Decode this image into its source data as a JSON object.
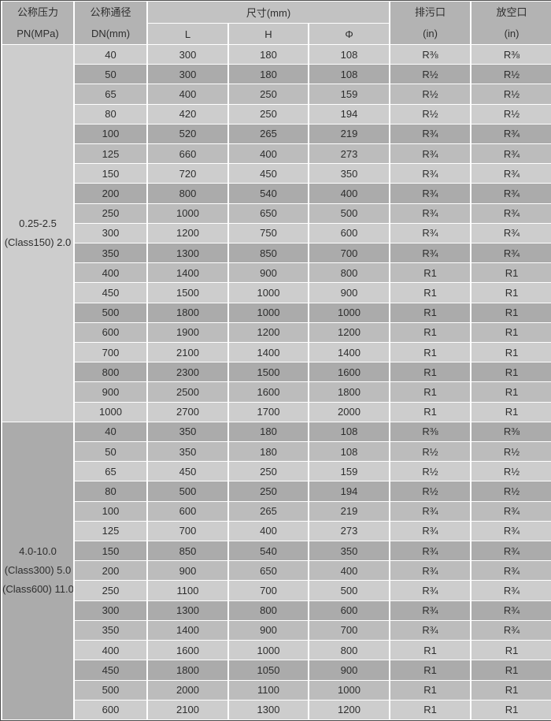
{
  "header": {
    "pressure": {
      "line1": "公称压力",
      "line2": "PN(MPa)"
    },
    "diameter": {
      "line1": "公称通径",
      "line2": "DN(mm)"
    },
    "size": "尺寸(mm)",
    "size_sub": {
      "l": "L",
      "h": "H",
      "phi": "Φ"
    },
    "drain": {
      "line1": "排污口",
      "line2": "(in)"
    },
    "vent": {
      "line1": "放空口",
      "line2": "(in)"
    }
  },
  "groups": [
    {
      "label_lines": [
        "0.25-2.5",
        "(Class150) 2.0"
      ],
      "shade": "light",
      "rows": [
        {
          "dn": "40",
          "L": "300",
          "H": "180",
          "phi": "108",
          "drain": "R⅜",
          "vent": "R⅜"
        },
        {
          "dn": "50",
          "L": "300",
          "H": "180",
          "phi": "108",
          "drain": "R½",
          "vent": "R½"
        },
        {
          "dn": "65",
          "L": "400",
          "H": "250",
          "phi": "159",
          "drain": "R½",
          "vent": "R½"
        },
        {
          "dn": "80",
          "L": "420",
          "H": "250",
          "phi": "194",
          "drain": "R½",
          "vent": "R½"
        },
        {
          "dn": "100",
          "L": "520",
          "H": "265",
          "phi": "219",
          "drain": "R¾",
          "vent": "R¾"
        },
        {
          "dn": "125",
          "L": "660",
          "H": "400",
          "phi": "273",
          "drain": "R¾",
          "vent": "R¾"
        },
        {
          "dn": "150",
          "L": "720",
          "H": "450",
          "phi": "350",
          "drain": "R¾",
          "vent": "R¾"
        },
        {
          "dn": "200",
          "L": "800",
          "H": "540",
          "phi": "400",
          "drain": "R¾",
          "vent": "R¾"
        },
        {
          "dn": "250",
          "L": "1000",
          "H": "650",
          "phi": "500",
          "drain": "R¾",
          "vent": "R¾"
        },
        {
          "dn": "300",
          "L": "1200",
          "H": "750",
          "phi": "600",
          "drain": "R¾",
          "vent": "R¾"
        },
        {
          "dn": "350",
          "L": "1300",
          "H": "850",
          "phi": "700",
          "drain": "R¾",
          "vent": "R¾"
        },
        {
          "dn": "400",
          "L": "1400",
          "H": "900",
          "phi": "800",
          "drain": "R1",
          "vent": "R1"
        },
        {
          "dn": "450",
          "L": "1500",
          "H": "1000",
          "phi": "900",
          "drain": "R1",
          "vent": "R1"
        },
        {
          "dn": "500",
          "L": "1800",
          "H": "1000",
          "phi": "1000",
          "drain": "R1",
          "vent": "R1"
        },
        {
          "dn": "600",
          "L": "1900",
          "H": "1200",
          "phi": "1200",
          "drain": "R1",
          "vent": "R1"
        },
        {
          "dn": "700",
          "L": "2100",
          "H": "1400",
          "phi": "1400",
          "drain": "R1",
          "vent": "R1"
        },
        {
          "dn": "800",
          "L": "2300",
          "H": "1500",
          "phi": "1600",
          "drain": "R1",
          "vent": "R1"
        },
        {
          "dn": "900",
          "L": "2500",
          "H": "1600",
          "phi": "1800",
          "drain": "R1",
          "vent": "R1"
        },
        {
          "dn": "1000",
          "L": "2700",
          "H": "1700",
          "phi": "2000",
          "drain": "R1",
          "vent": "R1"
        }
      ]
    },
    {
      "label_lines": [
        "4.0-10.0",
        "(Class300) 5.0",
        "(Class600) 11.0"
      ],
      "shade": "dark",
      "rows": [
        {
          "dn": "40",
          "L": "350",
          "H": "180",
          "phi": "108",
          "drain": "R⅜",
          "vent": "R⅜"
        },
        {
          "dn": "50",
          "L": "350",
          "H": "180",
          "phi": "108",
          "drain": "R½",
          "vent": "R½"
        },
        {
          "dn": "65",
          "L": "450",
          "H": "250",
          "phi": "159",
          "drain": "R½",
          "vent": "R½"
        },
        {
          "dn": "80",
          "L": "500",
          "H": "250",
          "phi": "194",
          "drain": "R½",
          "vent": "R½"
        },
        {
          "dn": "100",
          "L": "600",
          "H": "265",
          "phi": "219",
          "drain": "R¾",
          "vent": "R¾"
        },
        {
          "dn": "125",
          "L": "700",
          "H": "400",
          "phi": "273",
          "drain": "R¾",
          "vent": "R¾"
        },
        {
          "dn": "150",
          "L": "850",
          "H": "540",
          "phi": "350",
          "drain": "R¾",
          "vent": "R¾"
        },
        {
          "dn": "200",
          "L": "900",
          "H": "650",
          "phi": "400",
          "drain": "R¾",
          "vent": "R¾"
        },
        {
          "dn": "250",
          "L": "1100",
          "H": "700",
          "phi": "500",
          "drain": "R¾",
          "vent": "R¾"
        },
        {
          "dn": "300",
          "L": "1300",
          "H": "800",
          "phi": "600",
          "drain": "R¾",
          "vent": "R¾"
        },
        {
          "dn": "350",
          "L": "1400",
          "H": "900",
          "phi": "700",
          "drain": "R¾",
          "vent": "R¾"
        },
        {
          "dn": "400",
          "L": "1600",
          "H": "1000",
          "phi": "800",
          "drain": "R1",
          "vent": "R1"
        },
        {
          "dn": "450",
          "L": "1800",
          "H": "1050",
          "phi": "900",
          "drain": "R1",
          "vent": "R1"
        },
        {
          "dn": "500",
          "L": "2000",
          "H": "1100",
          "phi": "1000",
          "drain": "R1",
          "vent": "R1"
        },
        {
          "dn": "600",
          "L": "2100",
          "H": "1300",
          "phi": "1200",
          "drain": "R1",
          "vent": "R1"
        }
      ]
    }
  ],
  "colors": {
    "row_light": "#cdcdcd",
    "row_dark": "#ababab",
    "row_medium": "#bcbcbc",
    "header_merged": "#b3b3b3",
    "header_size": "#c2c2c2",
    "header_sub": "#c7c7c7",
    "border_white": "#ffffff",
    "outer_border": "#4b4b4b",
    "text": "#2e2e2e"
  }
}
